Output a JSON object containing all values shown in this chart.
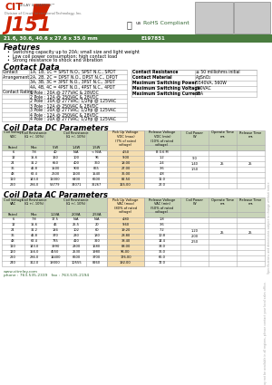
{
  "title": "J151",
  "subtitle": "21.6, 30.6, 40.6 x 27.6 x 35.0 mm",
  "part_number": "E197851",
  "features": [
    "Switching capacity up to 20A; small size and light weight",
    "Low coil power consumption; high contact load",
    "Strong resistance to shock and vibration"
  ],
  "contact_data_left": [
    [
      "Contact",
      "1A, 1B, 1C = SPST N.O., SPST N.C., SPDT"
    ],
    [
      "Arrangement",
      "2A, 2B, 2C = DPST N.O., DPST N.C., DPDT"
    ],
    [
      "",
      "3A, 3B, 3C = 3PST N.O., 3PST N.C., 3PDT"
    ],
    [
      "",
      "4A, 4B, 4C = 4PST N.O., 4PST N.C., 4PDT"
    ],
    [
      "Contact Rating",
      "1 Pole : 20A @ 277VAC & 28VDC"
    ],
    [
      "",
      "2 Pole : 12A @ 250VAC & 28VDC"
    ],
    [
      "",
      "2 Pole : 10A @ 277VAC; 1/2hp @ 125VAC"
    ],
    [
      "",
      "3 Pole : 12A @ 250VAC & 28VDC"
    ],
    [
      "",
      "3 Pole : 10A @ 277VAC; 1/2hp @ 125VAC"
    ],
    [
      "",
      "4 Pole : 12A @ 250VAC & 28VDC"
    ],
    [
      "",
      "4 Pole : 10A @ 277VAC; 1/2hp @ 125VAC"
    ]
  ],
  "contact_data_right": [
    [
      "Contact Resistance",
      "≤ 50 milliohms initial"
    ],
    [
      "Contact Material",
      "AgSnO₂"
    ],
    [
      "Maximum Switching Power",
      "5540VA, 560W"
    ],
    [
      "Maximum Switching Voltage",
      "300VAC"
    ],
    [
      "Maximum Switching Current",
      "20A"
    ]
  ],
  "dc_rows": [
    [
      "6",
      "7.8",
      "40",
      "N/A",
      "< N/A",
      "4.50",
      "B 0.6 M"
    ],
    [
      "12",
      "15.6",
      "160",
      "100",
      "96",
      "9.00",
      "1.2"
    ],
    [
      "24",
      "31.2",
      "650",
      "400",
      "360",
      "18.00",
      "2.4"
    ],
    [
      "36",
      "46.8",
      "1500",
      "900",
      "865",
      "27.00",
      "3.6"
    ],
    [
      "48",
      "62.4",
      "2600",
      "1600",
      "1540",
      "36.00",
      "4.8"
    ],
    [
      "110",
      "143.0",
      "11000",
      "6400",
      "6600",
      "82.50",
      "11.0"
    ],
    [
      "220",
      "286.0",
      "53779",
      "34071",
      "32267",
      "165.00",
      "22.0"
    ]
  ],
  "dc_power_col": [
    ".90",
    "1.40",
    "1.50"
  ],
  "dc_operate": "25",
  "dc_release": "25",
  "ac_rows": [
    [
      "6",
      "7.8",
      "17.5",
      "N/A",
      "N/A",
      "4.80",
      "1.8"
    ],
    [
      "12",
      "15.6",
      "46",
      "25.5",
      "20",
      "9.60",
      "3.6"
    ],
    [
      "24",
      "31.2",
      "184",
      "102",
      "60",
      "19.20",
      "7.2"
    ],
    [
      "36",
      "46.8",
      "370",
      "230",
      "180",
      "28.80",
      "10.8"
    ],
    [
      "48",
      "62.4",
      "735",
      "410",
      "320",
      "38.40",
      "14.4"
    ],
    [
      "110",
      "143.0",
      "3990",
      "2300",
      "1680",
      "88.00",
      "33.0"
    ],
    [
      "120",
      "156.0",
      "4550",
      "2530",
      "1980",
      "96.00",
      "36.0"
    ],
    [
      "220",
      "286.0",
      "14400",
      "8600",
      "3700",
      "176.00",
      "66.0"
    ],
    [
      "240",
      "312.0",
      "19000",
      "10555",
      "8260",
      "192.00",
      "72.0"
    ]
  ],
  "ac_power_col": [
    "1.20",
    "2.00",
    "2.50"
  ],
  "ac_operate": "25",
  "ac_release": "25",
  "footer_line1": "www.citrelay.com",
  "footer_line2": "phone : 763.535.2339   fax : 763.535.2194",
  "bg_color": "#ffffff",
  "table_line_color": "#aaaaaa",
  "header_section_bg": "#c8d4b8",
  "green_bar_color": "#4a7c3f",
  "red_color": "#cc2200",
  "side_text": "Specifications and dimensions subject to change without notice",
  "side_text2": "Some products may not be available in all regions, please contact your local sales office."
}
